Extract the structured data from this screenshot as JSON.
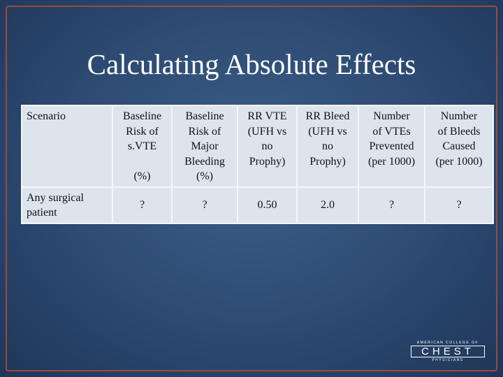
{
  "title": "Calculating Absolute Effects",
  "table": {
    "header": [
      {
        "lines": [
          "Scenario"
        ]
      },
      {
        "lines": [
          "Baseline",
          "Risk of",
          "s.VTE"
        ],
        "foot": "(%)"
      },
      {
        "lines": [
          "Baseline",
          "Risk of",
          "Major",
          "Bleeding",
          "(%)"
        ]
      },
      {
        "lines": [
          "RR VTE",
          "(UFH vs",
          "no",
          "Prophy)"
        ]
      },
      {
        "lines": [
          "RR Bleed",
          "(UFH vs",
          "no",
          "Prophy)"
        ]
      },
      {
        "lines": [
          "Number",
          "of VTEs",
          "Prevented",
          "(per 1000)"
        ]
      },
      {
        "lines": [
          "Number",
          "of Bleeds",
          "Caused",
          "(per 1000)"
        ]
      }
    ],
    "rows": [
      [
        "Any surgical patient",
        "?",
        "?",
        "0.50",
        "2.0",
        "?",
        "?"
      ]
    ]
  },
  "logo": {
    "top": "AMERICAN COLLEGE OF",
    "name": "CHEST",
    "bottom": "PHYSICIANS"
  }
}
